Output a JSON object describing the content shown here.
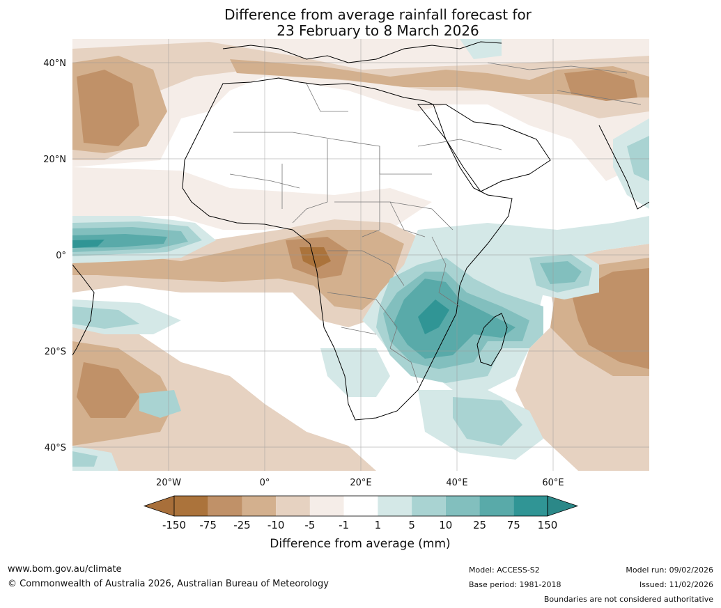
{
  "title_line1": "Difference from average rainfall forecast for",
  "title_line2": "23 February to 8 March 2026",
  "map": {
    "lat_labels": [
      "40°N",
      "20°N",
      "0°",
      "20°S",
      "40°S"
    ],
    "lon_labels": [
      "20°W",
      "0°",
      "20°E",
      "40°E",
      "60°E"
    ]
  },
  "colorbar": {
    "title": "Difference from average (mm)",
    "labels": [
      "-150",
      "-75",
      "-25",
      "-10",
      "-5",
      "-1",
      "1",
      "5",
      "10",
      "25",
      "75",
      "150"
    ],
    "colors": [
      "#a86f3a",
      "#ab733b",
      "#c09168",
      "#d3b08e",
      "#e6d2c1",
      "#f5ede8",
      "#ffffff",
      "#d4e8e7",
      "#a9d3d2",
      "#82bfbe",
      "#59aaa9",
      "#309595",
      "#2b8888"
    ]
  },
  "footer": {
    "website": "www.bom.gov.au/climate",
    "copyright": "© Commonwealth of Australia 2026, Australian Bureau of Meteorology",
    "model": "Model: ACCESS-S2",
    "base_period": "Base period: 1981-2018",
    "model_run": "Model run: 09/02/2026",
    "issued": "Issued: 11/02/2026",
    "boundaries": "Boundaries are not considered authoritative"
  }
}
